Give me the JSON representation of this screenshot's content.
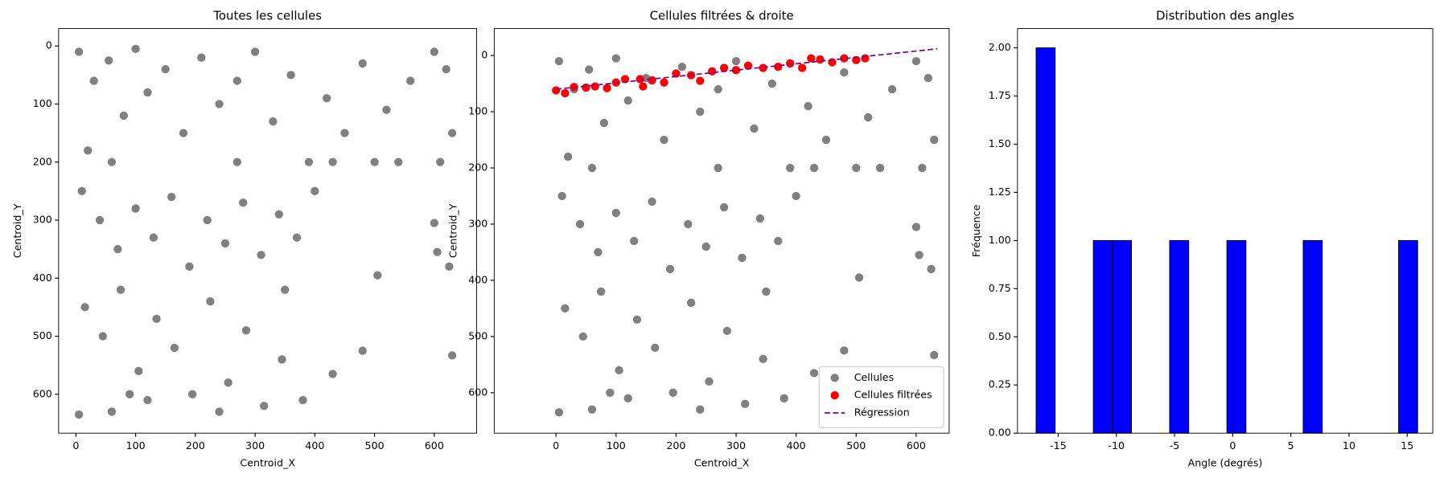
{
  "chart_data": [
    {
      "type": "scatter",
      "title": "Toutes les cellules",
      "xlabel": "Centroid_X",
      "ylabel": "Centroid_Y",
      "color": "#808080",
      "x": [
        5,
        30,
        55,
        80,
        100,
        120,
        150,
        180,
        210,
        240,
        270,
        300,
        330,
        360,
        390,
        420,
        450,
        480,
        520,
        560,
        600,
        620,
        630,
        610,
        540,
        500,
        10,
        40,
        70,
        100,
        130,
        160,
        190,
        220,
        250,
        280,
        310,
        340,
        370,
        400,
        430,
        600,
        605,
        625,
        505,
        15,
        45,
        75,
        105,
        135,
        165,
        195,
        225,
        255,
        285,
        315,
        345,
        380,
        430,
        480,
        630,
        5,
        60,
        120,
        240,
        90,
        20,
        60,
        270,
        350
      ],
      "values": [
        10,
        60,
        25,
        120,
        5,
        80,
        40,
        150,
        20,
        100,
        60,
        10,
        130,
        50,
        200,
        90,
        150,
        30,
        110,
        60,
        10,
        40,
        150,
        200,
        200,
        200,
        250,
        300,
        350,
        280,
        330,
        260,
        380,
        300,
        340,
        270,
        360,
        290,
        330,
        250,
        200,
        305,
        355,
        380,
        395,
        450,
        500,
        420,
        560,
        470,
        520,
        600,
        440,
        580,
        490,
        620,
        540,
        610,
        565,
        525,
        533,
        635,
        630,
        610,
        630,
        600,
        180,
        200,
        200,
        420
      ],
      "xlim": [
        -29,
        671
      ],
      "ylim": [
        667,
        -30
      ],
      "xticks": [
        0,
        100,
        200,
        300,
        400,
        500,
        600
      ],
      "yticks": [
        0,
        100,
        200,
        300,
        400,
        500,
        600
      ]
    },
    {
      "type": "scatter",
      "title": "Cellules filtrées & droite",
      "xlabel": "Centroid_X",
      "ylabel": "Centroid_Y",
      "legend": "lower right",
      "series": [
        {
          "name": "Cellules",
          "color": "#808080",
          "kind": "points",
          "x": [
            5,
            30,
            55,
            80,
            100,
            120,
            150,
            180,
            210,
            240,
            270,
            300,
            330,
            360,
            390,
            420,
            450,
            480,
            520,
            560,
            600,
            620,
            630,
            610,
            540,
            500,
            10,
            40,
            70,
            100,
            130,
            160,
            190,
            220,
            250,
            280,
            310,
            340,
            370,
            400,
            430,
            600,
            605,
            625,
            505,
            15,
            45,
            75,
            105,
            135,
            165,
            195,
            225,
            255,
            285,
            315,
            345,
            380,
            430,
            480,
            630,
            5,
            60,
            120,
            240,
            90,
            20,
            60,
            270,
            350
          ],
          "values": [
            10,
            60,
            25,
            120,
            5,
            80,
            40,
            150,
            20,
            100,
            60,
            10,
            130,
            50,
            200,
            90,
            150,
            30,
            110,
            60,
            10,
            40,
            150,
            200,
            200,
            200,
            250,
            300,
            350,
            280,
            330,
            260,
            380,
            300,
            340,
            270,
            360,
            290,
            330,
            250,
            200,
            305,
            355,
            380,
            395,
            450,
            500,
            420,
            560,
            470,
            520,
            600,
            440,
            580,
            490,
            620,
            540,
            610,
            565,
            525,
            533,
            635,
            630,
            610,
            630,
            600,
            180,
            200,
            200,
            420
          ]
        },
        {
          "name": "Cellules filtrées",
          "color": "#ff0000",
          "kind": "points",
          "x": [
            0,
            15,
            30,
            50,
            65,
            85,
            100,
            115,
            140,
            145,
            160,
            180,
            200,
            225,
            240,
            260,
            280,
            300,
            320,
            345,
            370,
            390,
            410,
            425,
            440,
            460,
            480,
            500,
            515
          ],
          "values": [
            62,
            67,
            56,
            57,
            55,
            58,
            48,
            42,
            42,
            55,
            44,
            48,
            32,
            35,
            45,
            28,
            22,
            26,
            18,
            22,
            20,
            14,
            22,
            5,
            7,
            12,
            5,
            8,
            5
          ]
        },
        {
          "name": "Régression",
          "color": "#800080",
          "kind": "dashed-line",
          "x": [
            0,
            635
          ],
          "values": [
            60,
            -12
          ]
        }
      ],
      "xlim": [
        -103,
        655
      ],
      "ylim": [
        672,
        -48
      ],
      "xticks": [
        0,
        100,
        200,
        300,
        400,
        500,
        600
      ],
      "yticks": [
        0,
        100,
        200,
        300,
        400,
        500,
        600
      ]
    },
    {
      "type": "histogram",
      "title": "Distribution des angles",
      "xlabel": "Angle (degrés)",
      "ylabel": "Fréquence",
      "color": "#0000ff",
      "bins": [
        -16.9,
        -15.26,
        -13.62,
        -11.98,
        -10.34,
        -8.7,
        -7.06,
        -5.42,
        -3.78,
        -2.14,
        -0.5,
        1.14,
        2.78,
        4.42,
        6.06,
        7.7,
        9.34,
        10.98,
        12.62,
        14.26,
        15.9
      ],
      "values": [
        2,
        0,
        0,
        1,
        1,
        0,
        0,
        1,
        0,
        0,
        1,
        0,
        0,
        0,
        1,
        0,
        0,
        0,
        0,
        1
      ],
      "xlim": [
        -18.5,
        17.2
      ],
      "ylim": [
        0,
        2.1
      ],
      "xticks": [
        -15,
        -10,
        -5,
        0,
        5,
        10,
        15
      ],
      "yticks": [
        {
          "value": 0,
          "label": "0.00"
        },
        {
          "value": 0.25,
          "label": "0.25"
        },
        {
          "value": 0.5,
          "label": "0.50"
        },
        {
          "value": 0.75,
          "label": "0.75"
        },
        {
          "value": 1,
          "label": "1.00"
        },
        {
          "value": 1.25,
          "label": "1.25"
        },
        {
          "value": 1.5,
          "label": "1.50"
        },
        {
          "value": 1.75,
          "label": "1.75"
        },
        {
          "value": 2,
          "label": "2.00"
        }
      ]
    }
  ]
}
